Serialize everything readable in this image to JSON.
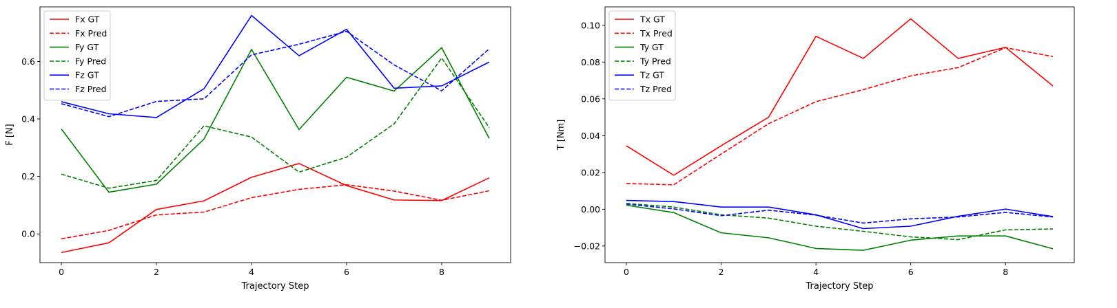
{
  "chart_data": [
    {
      "type": "line",
      "title": "",
      "xlabel": "Trajectory Step",
      "ylabel": "F [N]",
      "xlim": [
        -0.45,
        9.45
      ],
      "ylim": [
        -0.1,
        0.79
      ],
      "xticks": [
        0,
        2,
        4,
        6,
        8
      ],
      "yticks": [
        0.0,
        0.2,
        0.4,
        0.6
      ],
      "ytick_labels": [
        "0.0",
        "0.2",
        "0.4",
        "0.6"
      ],
      "grid": false,
      "legend_position": "top-left",
      "x": [
        0,
        1,
        2,
        3,
        4,
        5,
        6,
        7,
        8,
        9
      ],
      "series": [
        {
          "name": "Fx GT",
          "color": "#ff0000",
          "style": "solid",
          "values": [
            -0.065,
            -0.031,
            0.085,
            0.115,
            0.197,
            0.245,
            0.168,
            0.118,
            0.116,
            0.195
          ]
        },
        {
          "name": "Fx Pred",
          "color": "#ff0000",
          "style": "dashed",
          "values": [
            -0.017,
            0.012,
            0.066,
            0.076,
            0.126,
            0.155,
            0.171,
            0.149,
            0.117,
            0.15
          ]
        },
        {
          "name": "Fy GT",
          "color": "#008000",
          "style": "solid",
          "values": [
            0.365,
            0.145,
            0.173,
            0.33,
            0.642,
            0.363,
            0.545,
            0.497,
            0.648,
            0.332
          ]
        },
        {
          "name": "Fy Pred",
          "color": "#008000",
          "style": "dashed",
          "values": [
            0.208,
            0.159,
            0.186,
            0.376,
            0.337,
            0.215,
            0.267,
            0.383,
            0.612,
            0.37
          ]
        },
        {
          "name": "Fz GT",
          "color": "#0000ff",
          "style": "solid",
          "values": [
            0.46,
            0.418,
            0.405,
            0.505,
            0.76,
            0.62,
            0.712,
            0.507,
            0.515,
            0.598
          ]
        },
        {
          "name": "Fz Pred",
          "color": "#0000ff",
          "style": "dashed",
          "values": [
            0.453,
            0.408,
            0.461,
            0.47,
            0.623,
            0.66,
            0.705,
            0.588,
            0.498,
            0.644
          ]
        }
      ]
    },
    {
      "type": "line",
      "title": "",
      "xlabel": "Trajectory Step",
      "ylabel": "T [Nm]",
      "xlim": [
        -0.45,
        9.45
      ],
      "ylim": [
        -0.029,
        0.11
      ],
      "xticks": [
        0,
        2,
        4,
        6,
        8
      ],
      "yticks": [
        -0.02,
        0.0,
        0.02,
        0.04,
        0.06,
        0.08,
        0.1
      ],
      "ytick_labels": [
        "−0.02",
        "0.00",
        "0.02",
        "0.04",
        "0.06",
        "0.08",
        "0.10"
      ],
      "grid": false,
      "legend_position": "top-left",
      "x": [
        0,
        1,
        2,
        3,
        4,
        5,
        6,
        7,
        8,
        9
      ],
      "series": [
        {
          "name": "Tx GT",
          "color": "#ff0000",
          "style": "solid",
          "values": [
            0.0345,
            0.0185,
            0.0345,
            0.05,
            0.094,
            0.082,
            0.1035,
            0.082,
            0.088,
            0.067
          ]
        },
        {
          "name": "Tx Pred",
          "color": "#ff0000",
          "style": "dashed",
          "values": [
            0.014,
            0.0133,
            0.03,
            0.0465,
            0.0585,
            0.065,
            0.0725,
            0.077,
            0.0878,
            0.083
          ]
        },
        {
          "name": "Ty GT",
          "color": "#008000",
          "style": "solid",
          "values": [
            0.0022,
            -0.0018,
            -0.0128,
            -0.0155,
            -0.0213,
            -0.0223,
            -0.0168,
            -0.0145,
            -0.0145,
            -0.0215
          ]
        },
        {
          "name": "Ty Pred",
          "color": "#008000",
          "style": "dashed",
          "values": [
            0.0032,
            0.0012,
            -0.003,
            -0.0048,
            -0.0092,
            -0.012,
            -0.015,
            -0.0165,
            -0.0112,
            -0.0107
          ]
        },
        {
          "name": "Tz GT",
          "color": "#0000ff",
          "style": "solid",
          "values": [
            0.0048,
            0.0042,
            0.0012,
            0.0012,
            -0.003,
            -0.0105,
            -0.0092,
            -0.0038,
            0.0001,
            -0.004
          ]
        },
        {
          "name": "Tz Pred",
          "color": "#0000ff",
          "style": "dashed",
          "values": [
            0.0028,
            0.0002,
            -0.0035,
            -0.0005,
            -0.0032,
            -0.0075,
            -0.0052,
            -0.0042,
            -0.0017,
            -0.0042
          ]
        }
      ]
    }
  ]
}
